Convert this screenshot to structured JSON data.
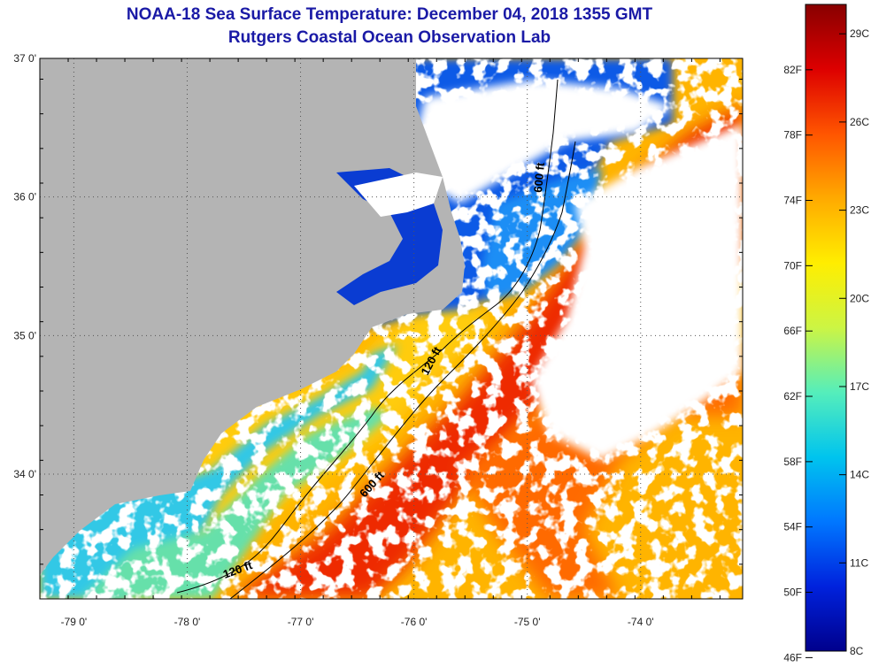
{
  "title": {
    "line1": "NOAA-18 Sea Surface Temperature:  December 04, 2018 1355 GMT",
    "line2": "Rutgers Coastal Ocean Observation Lab"
  },
  "map": {
    "lat_range": [
      33.1,
      37.0
    ],
    "lon_range": [
      -79.3,
      -73.1
    ],
    "lat_ticks": [
      {
        "value": 37,
        "label": "37 0'"
      },
      {
        "value": 36,
        "label": "36 0'"
      },
      {
        "value": 35,
        "label": "35 0'"
      },
      {
        "value": 34,
        "label": "34 0'"
      }
    ],
    "lon_ticks": [
      {
        "value": -79,
        "label": "-79 0'"
      },
      {
        "value": -78,
        "label": "-78 0'"
      },
      {
        "value": -77,
        "label": "-77 0'"
      },
      {
        "value": -76,
        "label": "-76 0'"
      },
      {
        "value": -75,
        "label": "-75 0'"
      },
      {
        "value": -74,
        "label": "-74 0'"
      }
    ],
    "contours": [
      {
        "label_upper": "120 ft",
        "label_lower": "120 ft"
      },
      {
        "label_upper": "600 ft",
        "label_lower": "600 ft"
      }
    ],
    "colors": {
      "land": "#b4b4b4",
      "cloud": "#ffffff",
      "contour": "#000000"
    }
  },
  "colorbar": {
    "fahrenheit": [
      "82F",
      "78F",
      "74F",
      "70F",
      "66F",
      "62F",
      "58F",
      "54F",
      "50F",
      "46F"
    ],
    "celsius": [
      "29C",
      "26C",
      "23C",
      "20C",
      "17C",
      "14C",
      "11C",
      "8C"
    ],
    "range_c": [
      8,
      30
    ],
    "stops": [
      "#00008c",
      "#0022dd",
      "#0077ff",
      "#00c4ee",
      "#55eebb",
      "#ccf544",
      "#ffee00",
      "#ffaa00",
      "#ff5500",
      "#dd0000",
      "#880000"
    ]
  }
}
